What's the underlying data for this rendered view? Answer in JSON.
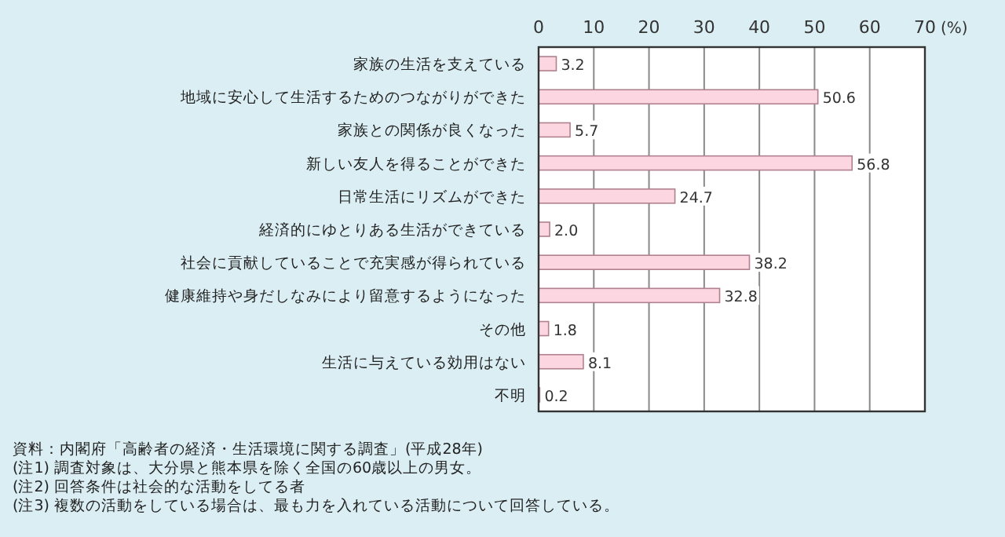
{
  "chart_data": {
    "type": "bar",
    "orientation": "horizontal",
    "xlabel": "(%)",
    "categories": [
      "家族の生活を支えている",
      "地域に安心して生活するためのつながりができた",
      "家族との関係が良くなった",
      "新しい友人を得ることができた",
      "日常生活にリズムができた",
      "経済的にゆとりある生活ができている",
      "社会に貢献していることで充実感が得られている",
      "健康維持や身だしなみにより留意するようになった",
      "その他",
      "生活に与えている効用はない",
      "不明"
    ],
    "values": [
      3.2,
      50.6,
      5.7,
      56.8,
      24.7,
      2.0,
      38.2,
      32.8,
      1.8,
      8.1,
      0.2
    ],
    "value_labels": [
      "3.2",
      "50.6",
      "5.7",
      "56.8",
      "24.7",
      "2.0",
      "38.2",
      "32.8",
      "1.8",
      "8.1",
      "0.2"
    ],
    "color": "#fcd7e2",
    "xlim": [
      0,
      70
    ],
    "xticks": [
      0,
      10,
      20,
      30,
      40,
      50,
      60,
      70
    ],
    "grid": "x",
    "annotations": [
      "資料：内閣府「高齢者の経済・生活環境に関する調査」(平成28年)",
      "(注1) 調査対象は、大分県と熊本県を除く全国の60歳以上の男女。",
      "(注2) 回答条件は社会的な活動をしてる者",
      "(注3) 複数の活動をしている場合は、最も力を入れている活動について回答している。"
    ]
  }
}
